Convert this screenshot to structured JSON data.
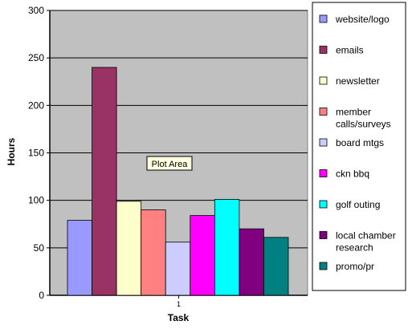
{
  "chart_data": {
    "type": "bar",
    "categories": [
      "1"
    ],
    "series": [
      {
        "name": "website/logo",
        "values": [
          79
        ],
        "color": "#9999ff"
      },
      {
        "name": "emails",
        "values": [
          240
        ],
        "color": "#993366"
      },
      {
        "name": "newsletter",
        "values": [
          99
        ],
        "color": "#ffffcc"
      },
      {
        "name": "member calls/surveys",
        "values": [
          90
        ],
        "color": "#ff8080"
      },
      {
        "name": "board mtgs",
        "values": [
          56
        ],
        "color": "#ccccff"
      },
      {
        "name": "ckn bbq",
        "values": [
          84
        ],
        "color": "#ff00ff"
      },
      {
        "name": "golf outing",
        "values": [
          101
        ],
        "color": "#00ffff"
      },
      {
        "name": "local chamber research",
        "values": [
          70
        ],
        "color": "#800080"
      },
      {
        "name": "promo/pr",
        "values": [
          61
        ],
        "color": "#008080"
      }
    ],
    "title": "",
    "xlabel": "Task",
    "ylabel": "Hours",
    "ylim": [
      0,
      300
    ],
    "yticks": [
      0,
      50,
      100,
      150,
      200,
      250,
      300
    ],
    "grid": true,
    "legend_position": "right",
    "plot_area_color": "#c0c0c0",
    "tooltip_text": "Plot Area"
  }
}
